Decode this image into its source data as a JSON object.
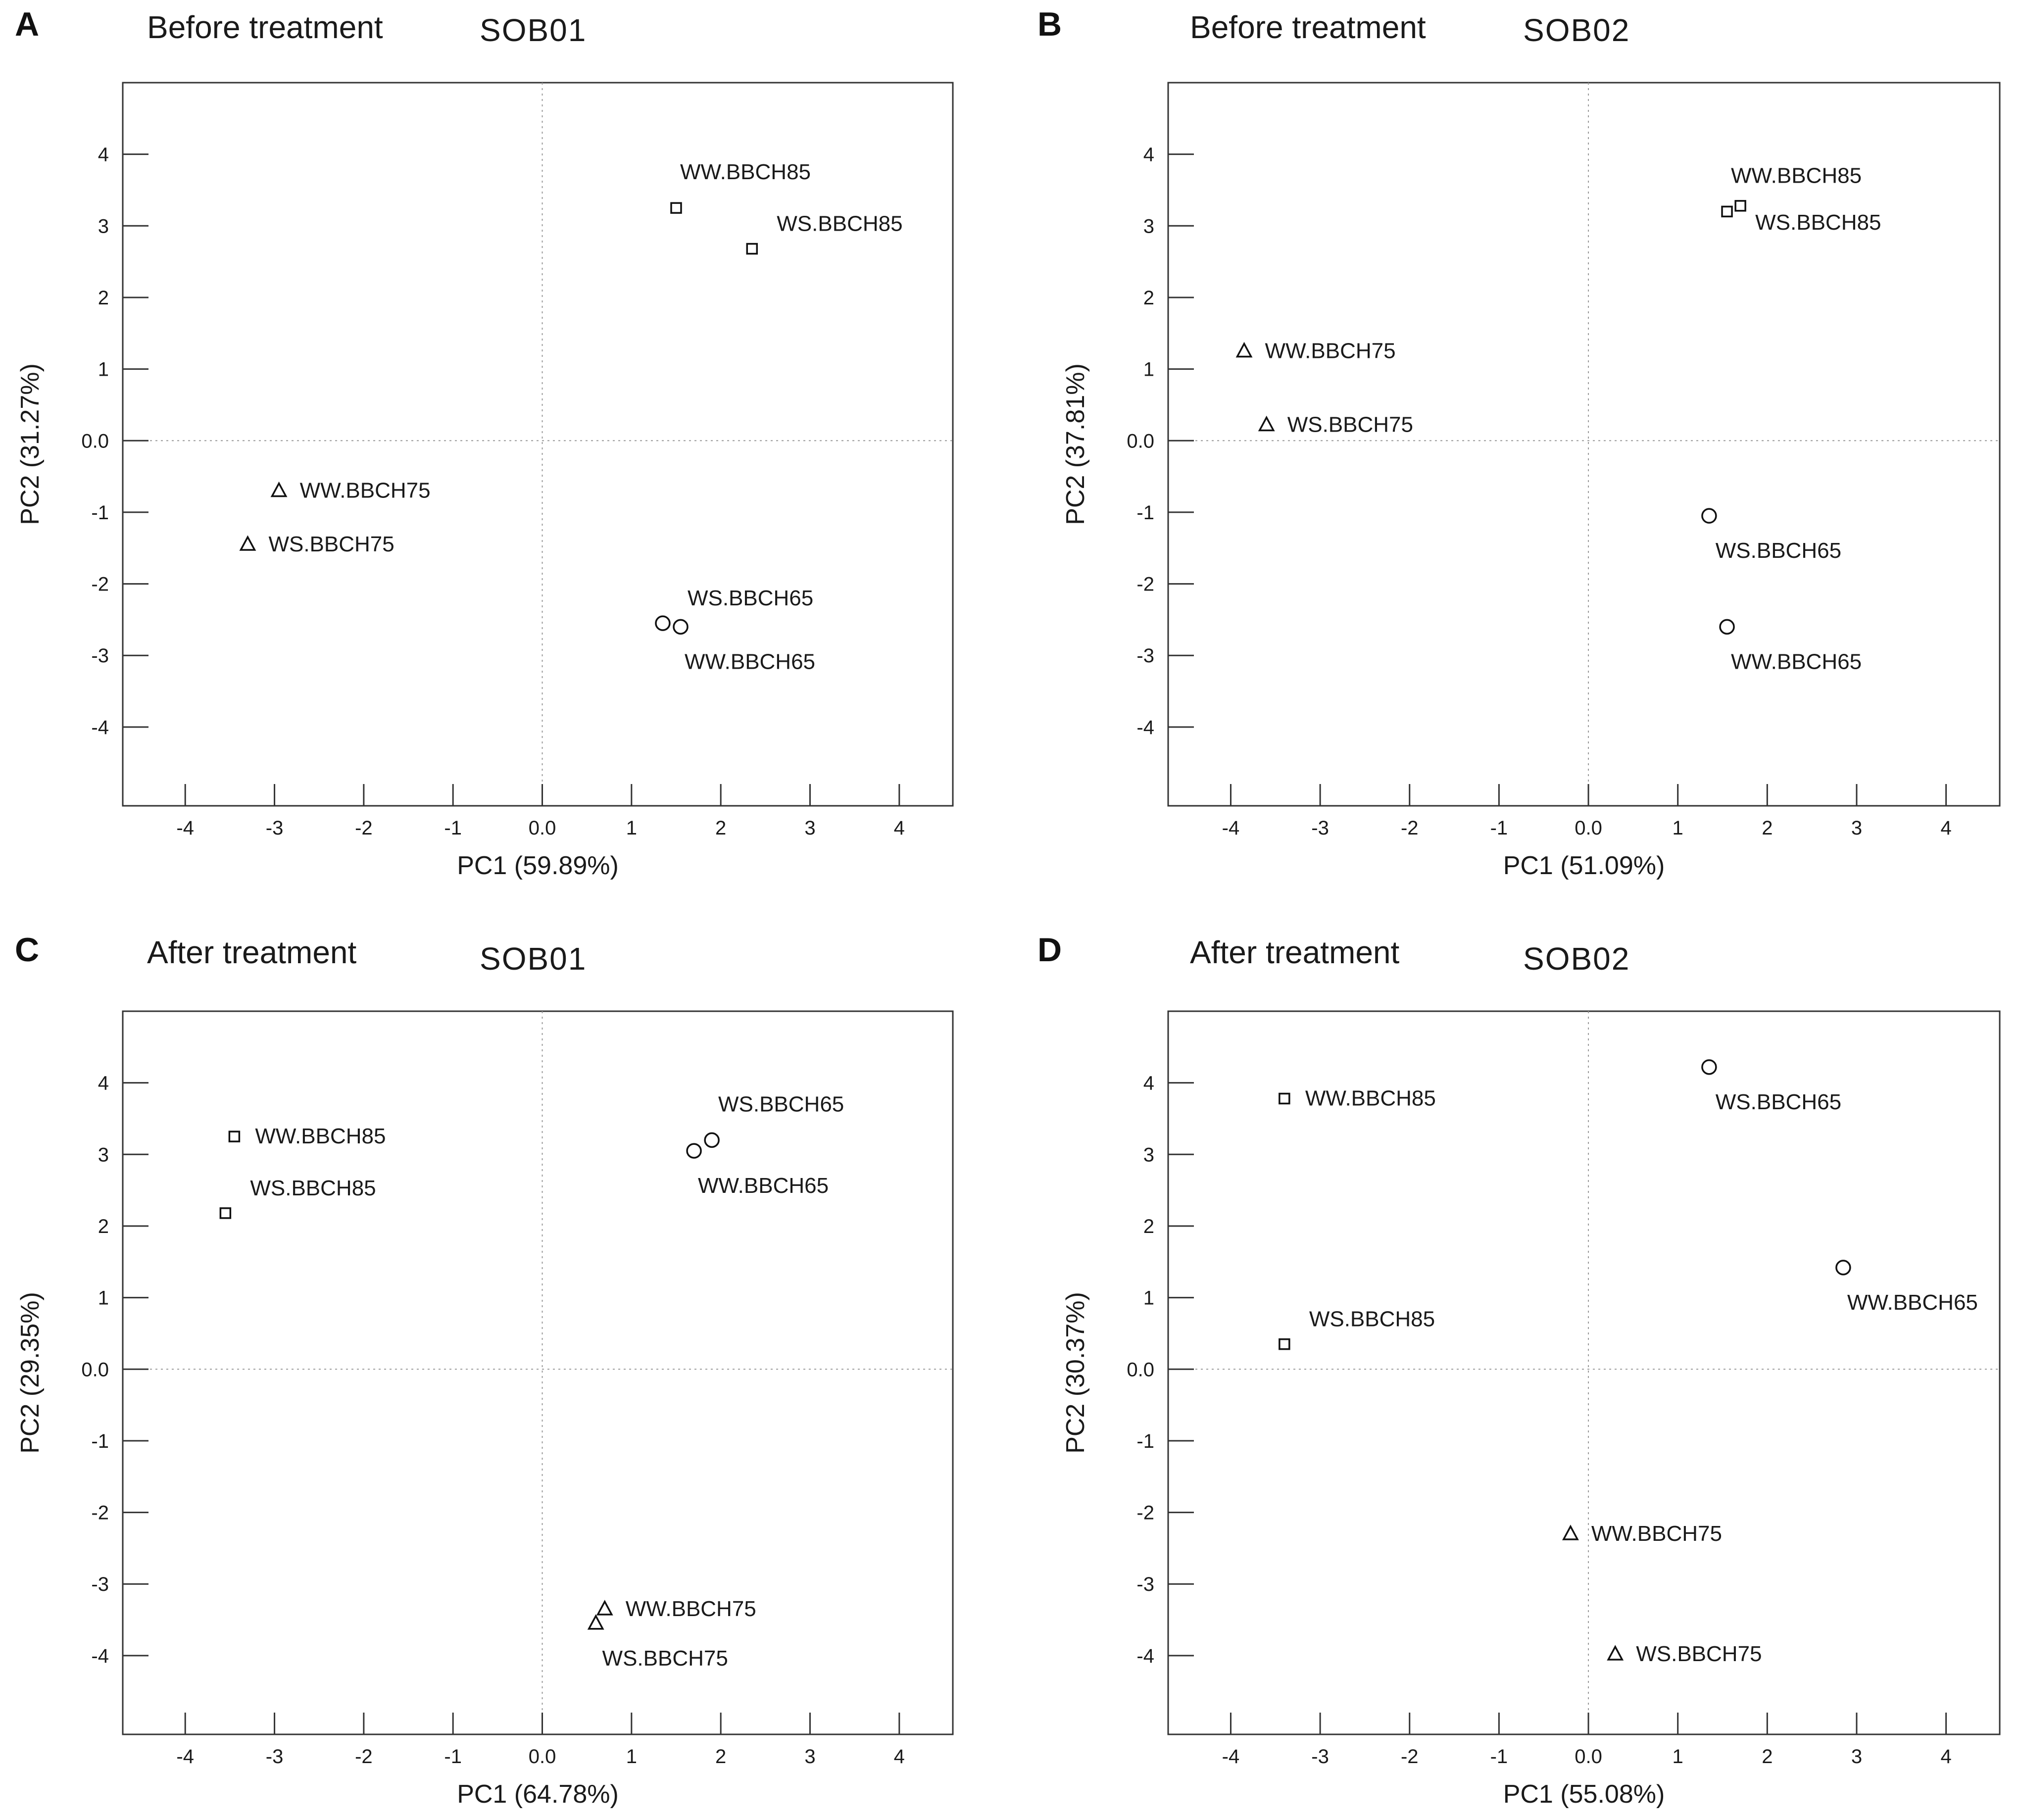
{
  "chart_data": [
    {
      "type": "scatter",
      "panel_letter": "A",
      "condition": "Before treatment",
      "strain": "SOB01",
      "xlabel": "PC1 (59.89%)",
      "ylabel": "PC2 (31.27%)",
      "xlim": [
        -4.7,
        4.6
      ],
      "ylim": [
        -5.1,
        5.0
      ],
      "xticks": [
        -4,
        -3,
        -2,
        -1,
        0,
        1,
        2,
        3,
        4
      ],
      "xtick_labels": [
        "-4",
        "-3",
        "-2",
        "-1",
        "0.0",
        "1",
        "2",
        "3",
        "4"
      ],
      "yticks": [
        -4,
        -3,
        -2,
        -1,
        0,
        1,
        2,
        3,
        4
      ],
      "ytick_labels": [
        "-4",
        "-3",
        "-2",
        "-1",
        "0.0",
        "1",
        "2",
        "3",
        "4"
      ],
      "points": [
        {
          "label": "WW.BBCH85",
          "x": 1.5,
          "y": 3.25,
          "marker": "square",
          "label_pos": "above"
        },
        {
          "label": "WS.BBCH85",
          "x": 2.35,
          "y": 2.68,
          "marker": "square",
          "label_pos": "above-right"
        },
        {
          "label": "WW.BBCH75",
          "x": -2.95,
          "y": -0.7,
          "marker": "triangle",
          "label_pos": "right"
        },
        {
          "label": "WS.BBCH75",
          "x": -3.3,
          "y": -1.45,
          "marker": "triangle",
          "label_pos": "right"
        },
        {
          "label": "WS.BBCH65",
          "x": 1.35,
          "y": -2.55,
          "marker": "circle",
          "label_pos": "above-right"
        },
        {
          "label": "WW.BBCH65",
          "x": 1.55,
          "y": -2.6,
          "marker": "circle",
          "label_pos": "below"
        }
      ]
    },
    {
      "type": "scatter",
      "panel_letter": "B",
      "condition": "Before treatment",
      "strain": "SOB02",
      "xlabel": "PC1 (51.09%)",
      "ylabel": "PC2 (37.81%)",
      "xlim": [
        -4.7,
        4.6
      ],
      "ylim": [
        -5.1,
        5.0
      ],
      "xticks": [
        -4,
        -3,
        -2,
        -1,
        0,
        1,
        2,
        3,
        4
      ],
      "xtick_labels": [
        "-4",
        "-3",
        "-2",
        "-1",
        "0.0",
        "1",
        "2",
        "3",
        "4"
      ],
      "yticks": [
        -4,
        -3,
        -2,
        -1,
        0,
        1,
        2,
        3,
        4
      ],
      "ytick_labels": [
        "-4",
        "-3",
        "-2",
        "-1",
        "0.0",
        "1",
        "2",
        "3",
        "4"
      ],
      "points": [
        {
          "label": "WW.BBCH85",
          "x": 1.55,
          "y": 3.2,
          "marker": "square",
          "label_pos": "above"
        },
        {
          "label": "WS.BBCH85",
          "x": 1.7,
          "y": 3.28,
          "marker": "square",
          "label_pos": "below-right"
        },
        {
          "label": "WW.BBCH75",
          "x": -3.85,
          "y": 1.25,
          "marker": "triangle",
          "label_pos": "right"
        },
        {
          "label": "WS.BBCH75",
          "x": -3.6,
          "y": 0.22,
          "marker": "triangle",
          "label_pos": "right"
        },
        {
          "label": "WS.BBCH65",
          "x": 1.35,
          "y": -1.05,
          "marker": "circle",
          "label_pos": "below"
        },
        {
          "label": "WW.BBCH65",
          "x": 1.55,
          "y": -2.6,
          "marker": "circle",
          "label_pos": "below"
        }
      ]
    },
    {
      "type": "scatter",
      "panel_letter": "C",
      "condition": "After treatment",
      "strain": "SOB01",
      "xlabel": "PC1 (64.78%)",
      "ylabel": "PC2 (29.35%)",
      "xlim": [
        -4.7,
        4.6
      ],
      "ylim": [
        -5.1,
        5.0
      ],
      "xticks": [
        -4,
        -3,
        -2,
        -1,
        0,
        1,
        2,
        3,
        4
      ],
      "xtick_labels": [
        "-4",
        "-3",
        "-2",
        "-1",
        "0.0",
        "1",
        "2",
        "3",
        "4"
      ],
      "yticks": [
        -4,
        -3,
        -2,
        -1,
        0,
        1,
        2,
        3,
        4
      ],
      "ytick_labels": [
        "-4",
        "-3",
        "-2",
        "-1",
        "0.0",
        "1",
        "2",
        "3",
        "4"
      ],
      "points": [
        {
          "label": "WW.BBCH85",
          "x": -3.45,
          "y": 3.25,
          "marker": "square",
          "label_pos": "right"
        },
        {
          "label": "WS.BBCH85",
          "x": -3.55,
          "y": 2.18,
          "marker": "square",
          "label_pos": "above-right"
        },
        {
          "label": "WS.BBCH65",
          "x": 1.9,
          "y": 3.2,
          "marker": "circle",
          "label_pos": "above"
        },
        {
          "label": "WW.BBCH65",
          "x": 1.7,
          "y": 3.05,
          "marker": "circle",
          "label_pos": "below"
        },
        {
          "label": "WW.BBCH75",
          "x": 0.7,
          "y": -3.35,
          "marker": "triangle",
          "label_pos": "right"
        },
        {
          "label": "WS.BBCH75",
          "x": 0.6,
          "y": -3.55,
          "marker": "triangle",
          "label_pos": "below"
        }
      ]
    },
    {
      "type": "scatter",
      "panel_letter": "D",
      "condition": "After treatment",
      "strain": "SOB02",
      "xlabel": "PC1 (55.08%)",
      "ylabel": "PC2 (30.37%)",
      "xlim": [
        -4.7,
        4.6
      ],
      "ylim": [
        -5.1,
        5.0
      ],
      "xticks": [
        -4,
        -3,
        -2,
        -1,
        0,
        1,
        2,
        3,
        4
      ],
      "xtick_labels": [
        "-4",
        "-3",
        "-2",
        "-1",
        "0.0",
        "1",
        "2",
        "3",
        "4"
      ],
      "yticks": [
        -4,
        -3,
        -2,
        -1,
        0,
        1,
        2,
        3,
        4
      ],
      "ytick_labels": [
        "-4",
        "-3",
        "-2",
        "-1",
        "0.0",
        "1",
        "2",
        "3",
        "4"
      ],
      "points": [
        {
          "label": "WW.BBCH85",
          "x": -3.4,
          "y": 3.78,
          "marker": "square",
          "label_pos": "right"
        },
        {
          "label": "WS.BBCH85",
          "x": -3.4,
          "y": 0.35,
          "marker": "square",
          "label_pos": "above-right"
        },
        {
          "label": "WS.BBCH65",
          "x": 1.35,
          "y": 4.22,
          "marker": "circle",
          "label_pos": "below"
        },
        {
          "label": "WW.BBCH65",
          "x": 2.85,
          "y": 1.42,
          "marker": "circle",
          "label_pos": "below"
        },
        {
          "label": "WW.BBCH75",
          "x": -0.2,
          "y": -2.3,
          "marker": "triangle",
          "label_pos": "right"
        },
        {
          "label": "WS.BBCH75",
          "x": 0.3,
          "y": -3.98,
          "marker": "triangle",
          "label_pos": "right"
        }
      ]
    }
  ]
}
